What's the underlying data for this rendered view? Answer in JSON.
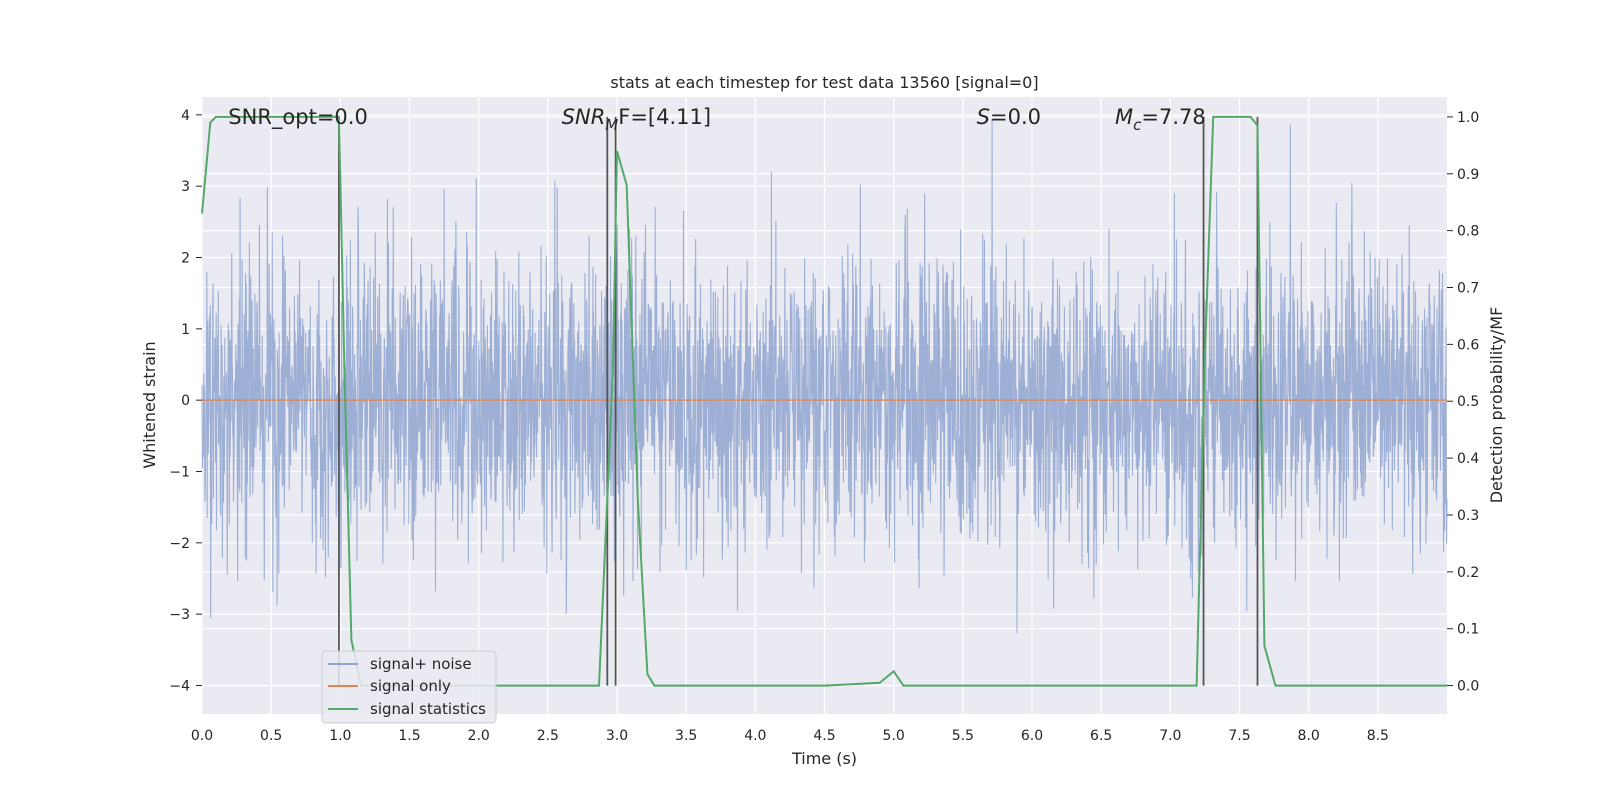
{
  "chart_data": {
    "type": "line",
    "title": "stats at each timestep for test data 13560 [signal=0]",
    "xlabel": "Time (s)",
    "ylabel_left": "Whitened strain",
    "ylabel_right": "Detection probability/MF",
    "xlim": [
      0,
      9.0
    ],
    "ylim_left": [
      -4.4,
      4.25
    ],
    "ylim_right": [
      -0.05,
      1.035
    ],
    "x_ticks": [
      "0.0",
      "0.5",
      "1.0",
      "1.5",
      "2.0",
      "2.5",
      "3.0",
      "3.5",
      "4.0",
      "4.5",
      "5.0",
      "5.5",
      "6.0",
      "6.5",
      "7.0",
      "7.5",
      "8.0",
      "8.5"
    ],
    "x_tick_values": [
      0,
      0.5,
      1.0,
      1.5,
      2.0,
      2.5,
      3.0,
      3.5,
      4.0,
      4.5,
      5.0,
      5.5,
      6.0,
      6.5,
      7.0,
      7.5,
      8.0,
      8.5
    ],
    "y_left_ticks": [
      "−4",
      "−3",
      "−2",
      "−1",
      "0",
      "1",
      "2",
      "3",
      "4"
    ],
    "y_left_tick_values": [
      -4,
      -3,
      -2,
      -1,
      0,
      1,
      2,
      3,
      4
    ],
    "y_right_ticks": [
      "0.0",
      "0.1",
      "0.2",
      "0.3",
      "0.4",
      "0.5",
      "0.6",
      "0.7",
      "0.8",
      "0.9",
      "1.0"
    ],
    "y_right_tick_values": [
      0.0,
      0.1,
      0.2,
      0.3,
      0.4,
      0.5,
      0.6,
      0.7,
      0.8,
      0.9,
      1.0
    ],
    "grid": true,
    "legend_position": "lower-left",
    "annotations": {
      "snr_opt": "SNR_opt=0.0",
      "snr_mf_main": "SNR",
      "snr_mf_sub": "M",
      "snr_mf_tail": "F=[4.11]",
      "s_main": "S",
      "s_tail": "=0.0",
      "mc_main": "M",
      "mc_sub": "c",
      "mc_tail": "=7.78"
    },
    "annotation_x": {
      "snr_opt": 0.19,
      "snr_mf": 2.6,
      "s": 5.6,
      "mc": 6.6
    },
    "vertical_markers": [
      0.99,
      2.93,
      2.99,
      7.24,
      7.63
    ],
    "series": [
      {
        "name": "signal+ noise",
        "color": "#8fa5cf",
        "axis": "left",
        "noise_sigma": 1.0,
        "x_range": [
          0,
          9.0
        ]
      },
      {
        "name": "signal only",
        "color": "#dd8452",
        "axis": "left",
        "x": [
          0,
          9.0
        ],
        "y": [
          0,
          0
        ]
      },
      {
        "name": "signal statistics",
        "color": "#55a868",
        "axis": "right",
        "x": [
          0.0,
          0.06,
          0.1,
          0.2,
          0.5,
          0.8,
          0.99,
          1.03,
          1.08,
          1.15,
          2.5,
          2.87,
          2.97,
          3.0,
          3.07,
          3.15,
          3.22,
          3.27,
          4.5,
          4.9,
          5.0,
          5.07,
          5.5,
          7.0,
          7.19,
          7.25,
          7.31,
          7.5,
          7.58,
          7.63,
          7.68,
          7.76,
          9.0
        ],
        "y": [
          0.83,
          0.99,
          1.0,
          1.0,
          1.0,
          1.0,
          1.0,
          0.55,
          0.08,
          0.0,
          0.0,
          0.0,
          0.55,
          0.94,
          0.88,
          0.33,
          0.02,
          0.0,
          0.0,
          0.005,
          0.025,
          0.0,
          0.0,
          0.0,
          0.0,
          0.58,
          1.0,
          1.0,
          1.0,
          0.985,
          0.07,
          0.0,
          0.0
        ]
      }
    ]
  },
  "legend": [
    {
      "label": "signal+ noise",
      "color": "#8fa5cf"
    },
    {
      "label": "signal only",
      "color": "#dd8452"
    },
    {
      "label": "signal statistics",
      "color": "#55a868"
    }
  ]
}
